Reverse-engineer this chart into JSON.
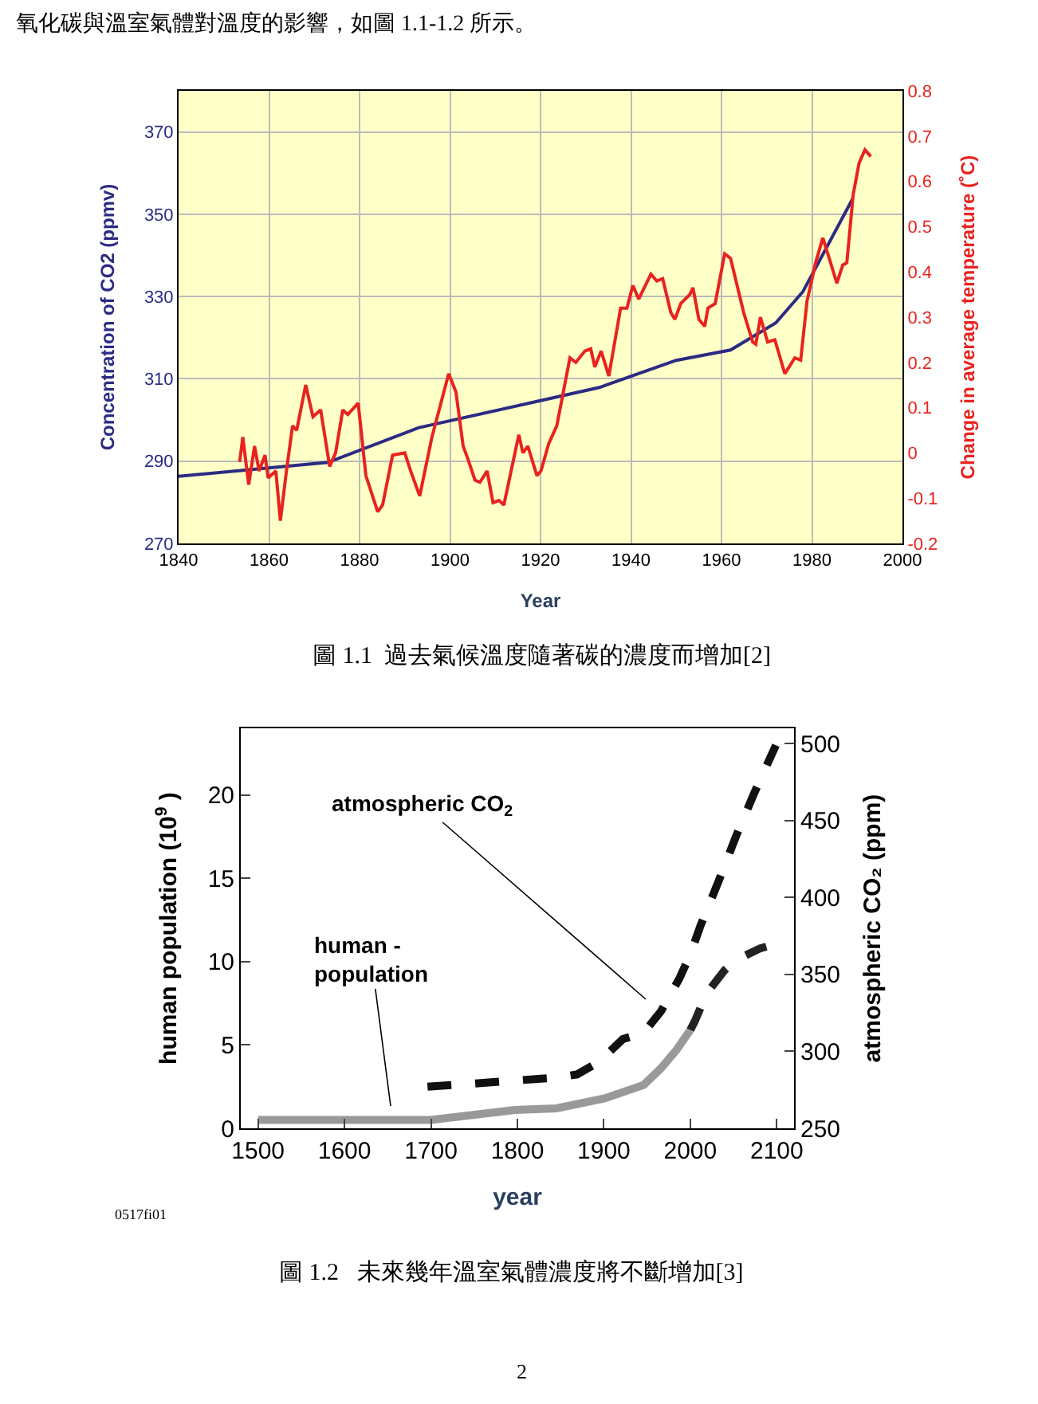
{
  "chart_data": [
    {
      "type": "line",
      "xlabel": "Year",
      "ylabel": "Concentration of CO2 (ppmv)",
      "y2label": "Change in average temperature (˚C)",
      "xlim": [
        1840,
        2000
      ],
      "xticks": [
        1840,
        1860,
        1880,
        1900,
        1920,
        1940,
        1960,
        1980,
        2000
      ],
      "ylim": [
        270,
        380
      ],
      "yticks": [
        270,
        290,
        310,
        330,
        350,
        370
      ],
      "y2lim": [
        -0.2,
        0.8
      ],
      "y2ticks": [
        -0.2,
        -0.1,
        0,
        0.1,
        0.2,
        0.3,
        0.4,
        0.5,
        0.6,
        0.7,
        0.8
      ],
      "grid": true,
      "marker": "none",
      "line_style": "solid",
      "series": [
        {
          "color": "#2b2b83",
          "x": [
            1840,
            1873,
            1893,
            1920,
            1933,
            1950,
            1962,
            1972,
            1978,
            1989
          ],
          "values": [
            286.3,
            289.7,
            298.1,
            304.7,
            307.9,
            314.5,
            317,
            323.6,
            331.2,
            353.8
          ]
        },
        {
          "color": "#e8231f",
          "axis": "y2",
          "x": [
            1853.5,
            1854.2,
            1855.5,
            1856.8,
            1857.8,
            1859.1,
            1859.8,
            1861.5,
            1862.5,
            1863.9,
            1865.2,
            1866.1,
            1868.1,
            1869.7,
            1871.4,
            1873.4,
            1874.7,
            1876.3,
            1877.4,
            1879.7,
            1881.4,
            1884,
            1885.1,
            1887.3,
            1890,
            1891.3,
            1893.3,
            1896,
            1899.7,
            1901.3,
            1902.9,
            1904,
            1905.5,
            1906.6,
            1908.2,
            1909.5,
            1910.8,
            1911.9,
            1915.2,
            1916.1,
            1917.2,
            1919.2,
            1920.1,
            1921.8,
            1923.6,
            1926.5,
            1927.8,
            1929.8,
            1931.1,
            1932,
            1933.4,
            1935.1,
            1937.7,
            1939.1,
            1940.4,
            1941.7,
            1944.4,
            1945.7,
            1947,
            1948.8,
            1949.7,
            1951,
            1953,
            1953.7,
            1955,
            1956.3,
            1957,
            1958.6,
            1960.7,
            1962,
            1964.9,
            1966.9,
            1967.6,
            1968.6,
            1970.2,
            1971.8,
            1974,
            1976.2,
            1977.5,
            1978.9,
            1980.8,
            1982.4,
            1983.5,
            1985.5,
            1986.8,
            1987.7,
            1989.1,
            1990.4,
            1991.7,
            1993
          ],
          "values": [
            -0.02,
            0.035,
            -0.07,
            0.015,
            -0.04,
            -0.005,
            -0.055,
            -0.04,
            -0.15,
            -0.035,
            0.06,
            0.05,
            0.15,
            0.08,
            0.095,
            -0.03,
            0.0,
            0.095,
            0.085,
            0.11,
            -0.05,
            -0.13,
            -0.115,
            -0.005,
            0.0,
            -0.04,
            -0.095,
            0.035,
            0.175,
            0.135,
            0.015,
            -0.015,
            -0.06,
            -0.065,
            -0.04,
            -0.11,
            -0.105,
            -0.115,
            0.04,
            0.0,
            0.015,
            -0.05,
            -0.04,
            0.02,
            0.06,
            0.21,
            0.2,
            0.225,
            0.23,
            0.19,
            0.225,
            0.17,
            0.32,
            0.32,
            0.37,
            0.34,
            0.395,
            0.38,
            0.385,
            0.31,
            0.295,
            0.33,
            0.35,
            0.365,
            0.295,
            0.28,
            0.32,
            0.33,
            0.44,
            0.43,
            0.31,
            0.245,
            0.24,
            0.3,
            0.245,
            0.25,
            0.175,
            0.21,
            0.205,
            0.335,
            0.42,
            0.475,
            0.44,
            0.375,
            0.415,
            0.42,
            0.57,
            0.64,
            0.67,
            0.655
          ]
        }
      ],
      "annotations": [
        "氧化碳與溫室氣體對溫度的影響，如圖 1.1-1.2 所示。",
        "圖 1.1  過去氣候溫度隨著碳的濃度而增加[2]"
      ]
    },
    {
      "type": "line",
      "xlabel": "year",
      "ylabel": "human population (10$^{9}$ )",
      "y2label": "atmospheric CO₂ (ppm)",
      "xlim": [
        1480,
        2120
      ],
      "xticks": [
        1500,
        1600,
        1700,
        1800,
        1900,
        2000,
        2100
      ],
      "ylim": [
        0,
        24
      ],
      "yticks": [
        0,
        5,
        10,
        15,
        20
      ],
      "y2lim": [
        250,
        510
      ],
      "y2ticks": [
        250,
        300,
        350,
        400,
        450,
        500
      ],
      "grid": false,
      "marker": "none",
      "series": [
        {
          "color": "#999999",
          "line_style": "solid",
          "x": [
            1500,
            1700,
            1797,
            1845,
            1901,
            1946,
            1966,
            1984,
            2000
          ],
          "values": [
            0.5,
            0.5,
            1.1,
            1.2,
            1.8,
            2.6,
            3.6,
            4.7,
            5.9
          ]
        },
        {
          "color": "#222222",
          "line_style": "dashed",
          "x": [
            2000,
            2005,
            2019,
            2040,
            2053,
            2081,
            2088
          ],
          "values": [
            5.9,
            6.4,
            8.1,
            9.5,
            10.1,
            10.8,
            10.9
          ]
        },
        {
          "color": "#111111",
          "line_style": "dashed",
          "axis": "y2",
          "x": [
            1696,
            1797,
            1845,
            1869,
            1894,
            1922,
            1946,
            1966,
            1987,
            2000,
            2012,
            2033,
            2053,
            2074,
            2099
          ],
          "values": [
            277,
            281,
            283,
            285,
            293,
            308,
            312,
            326,
            347,
            363,
            382,
            411,
            440,
            468,
            499
          ]
        }
      ],
      "annotations": [
        "atmospheric CO$_{2}$",
        "human -\npopulation",
        "0517fi01",
        "圖 1.2   未來幾年溫室氣體濃度將不斷增加[3]",
        "2"
      ]
    }
  ]
}
